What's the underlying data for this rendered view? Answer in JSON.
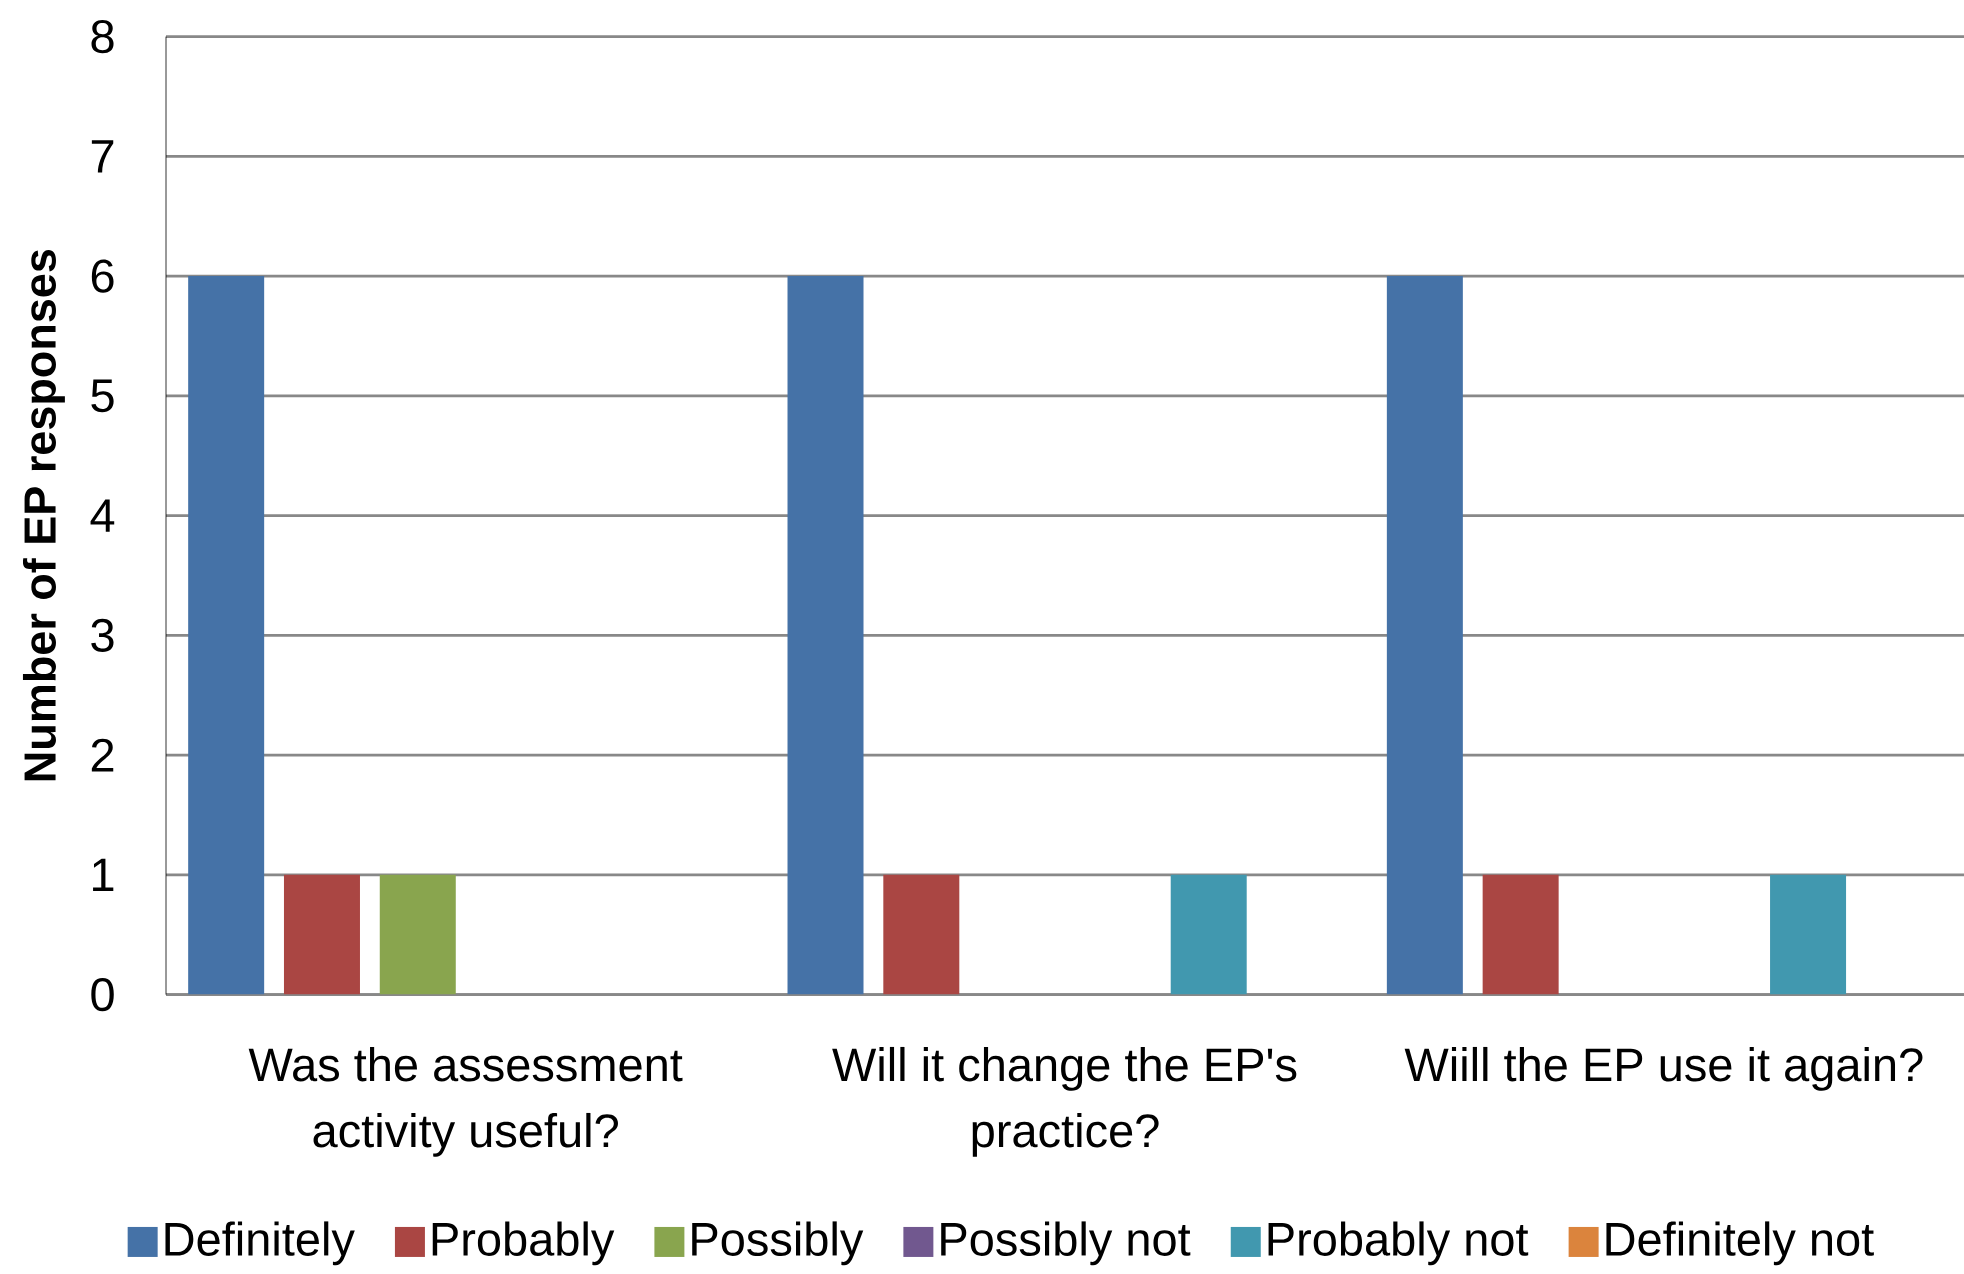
{
  "chart_data": {
    "type": "bar",
    "ylabel": "Number of EP responses",
    "categories": [
      "Was the assessment activity useful?",
      "Will it change the EP's practice?",
      "Wiill the EP use it again?"
    ],
    "series": [
      {
        "name": "Definitely",
        "color": "#4572a7",
        "values": [
          6,
          6,
          6
        ]
      },
      {
        "name": "Probably",
        "color": "#aa4643",
        "values": [
          1,
          1,
          1
        ]
      },
      {
        "name": "Possibly",
        "color": "#89a54e",
        "values": [
          1,
          0,
          0
        ]
      },
      {
        "name": "Possibly not",
        "color": "#71588f",
        "values": [
          0,
          0,
          0
        ]
      },
      {
        "name": "Probably not",
        "color": "#4198af",
        "values": [
          0,
          1,
          1
        ]
      },
      {
        "name": "Definitely not",
        "color": "#db843d",
        "values": [
          0,
          0,
          0
        ]
      }
    ],
    "ylim": [
      0,
      8
    ],
    "yticks": [
      0,
      1,
      2,
      3,
      4,
      5,
      6,
      7,
      8
    ],
    "grid": "y",
    "legend": "bottom"
  }
}
